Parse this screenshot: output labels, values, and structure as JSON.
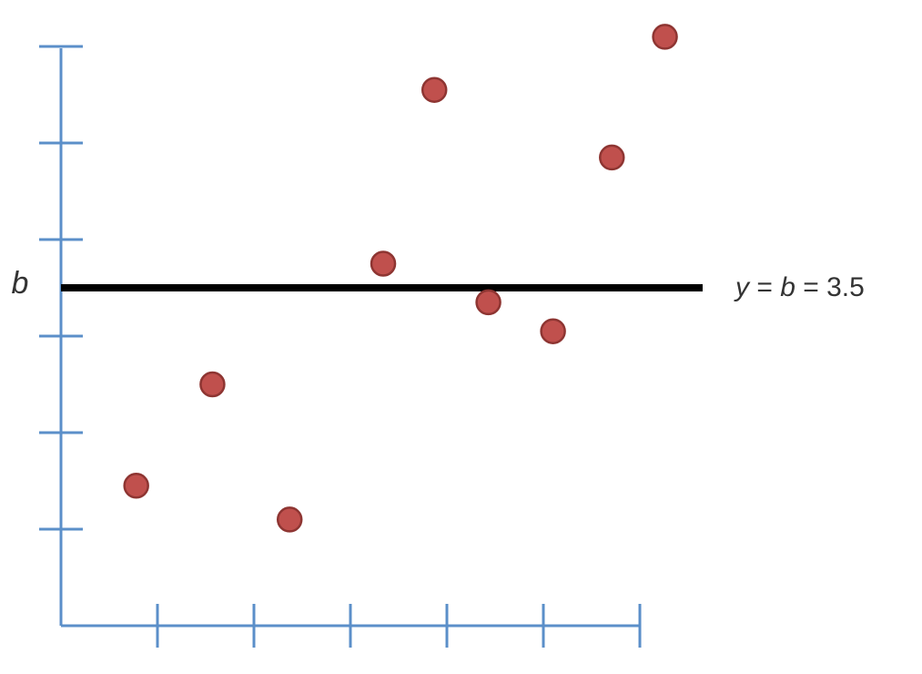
{
  "chart_data": {
    "type": "scatter",
    "title": "",
    "xlabel": "",
    "ylabel": "",
    "xlim": [
      0,
      6
    ],
    "ylim": [
      0,
      6
    ],
    "x_ticks": [
      1,
      2,
      3,
      4,
      5,
      6
    ],
    "y_ticks": [
      1,
      2,
      3,
      4,
      5,
      6
    ],
    "grid": false,
    "legend": "none",
    "points": [
      {
        "x": 0.78,
        "y": 1.45
      },
      {
        "x": 1.57,
        "y": 2.5
      },
      {
        "x": 2.37,
        "y": 1.1
      },
      {
        "x": 3.34,
        "y": 3.75
      },
      {
        "x": 3.87,
        "y": 5.55
      },
      {
        "x": 4.43,
        "y": 3.35
      },
      {
        "x": 5.1,
        "y": 3.05
      },
      {
        "x": 5.71,
        "y": 4.85
      },
      {
        "x": 6.26,
        "y": 6.1
      }
    ],
    "reference_line": {
      "y": 3.5,
      "left_label": "b",
      "right_label_var": "y",
      "right_label_eq1": " = ",
      "right_label_param": "b",
      "right_label_eq2": " = 3.5"
    }
  },
  "colors": {
    "axis": "#5b8fc9",
    "point_fill": "#c0504d",
    "point_stroke": "#8e3532",
    "line": "#000000",
    "text": "#333333"
  }
}
